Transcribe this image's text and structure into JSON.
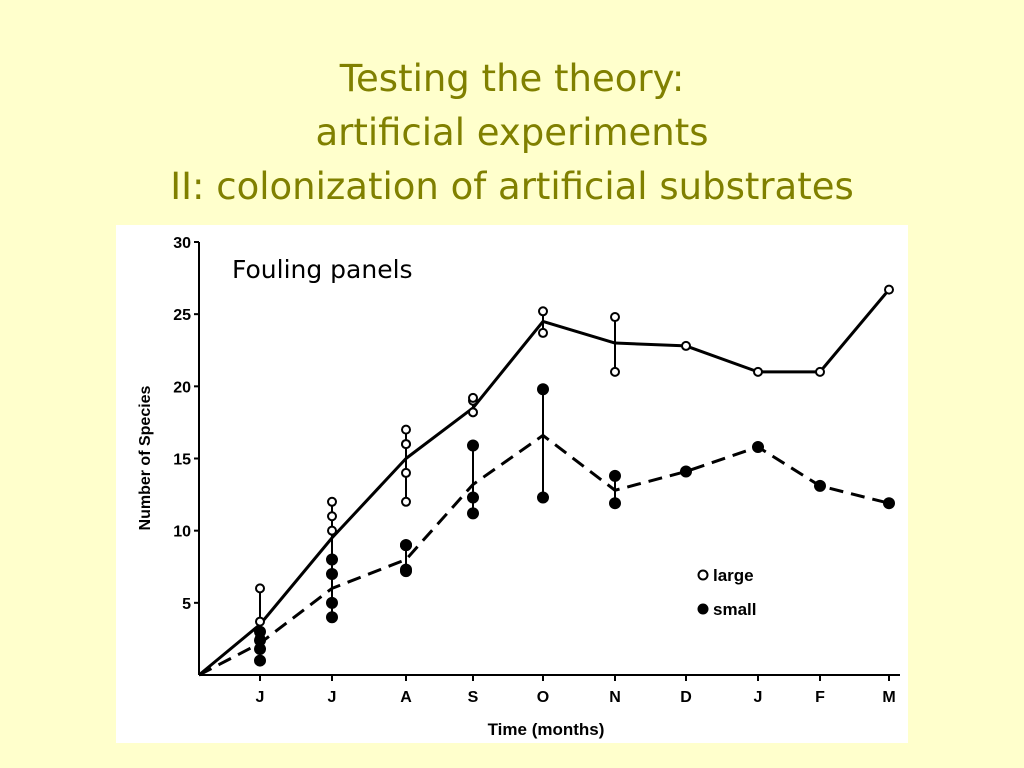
{
  "slide": {
    "title_lines": [
      "Testing the theory:",
      "artificial experiments",
      "II: colonization of artificial substrates"
    ]
  },
  "figure": {
    "inset_label": "Fouling panels"
  },
  "colors": {
    "background": "#ffffcc",
    "title": "#808000",
    "ink": "#000000"
  },
  "chart_data": {
    "type": "line",
    "xlabel": "Time (months)",
    "ylabel": "Number of Species",
    "categories": [
      "J",
      "J",
      "A",
      "S",
      "O",
      "N",
      "D",
      "J",
      "F",
      "M"
    ],
    "ylim": [
      0,
      30
    ],
    "yticks": [
      "5",
      "10",
      "15",
      "20",
      "25",
      "30"
    ],
    "grid": false,
    "legend": {
      "position": "bottom-right",
      "entries": [
        "large",
        "small"
      ]
    },
    "origin_value": 0,
    "series": [
      {
        "name": "large",
        "marker": "open-circle",
        "line": "solid",
        "mean": [
          3.5,
          9.5,
          15,
          18.5,
          24.5,
          23,
          22.8,
          21,
          21,
          26.7
        ],
        "observations": [
          [
            6,
            3.7,
            3,
            2.6
          ],
          [
            12,
            11,
            10,
            8
          ],
          [
            17,
            16,
            16,
            14,
            12
          ],
          [
            19,
            19.2,
            18.2
          ],
          [
            25.2,
            23.7
          ],
          [
            24.8,
            21
          ],
          [
            22.8
          ],
          [
            21
          ],
          [
            21
          ],
          [
            26.7
          ]
        ]
      },
      {
        "name": "small",
        "marker": "filled-circle",
        "line": "dashed",
        "mean": [
          2.2,
          6,
          8,
          13.2,
          16.6,
          12.8,
          14.1,
          15.8,
          13.1,
          11.9
        ],
        "observations": [
          [
            3,
            1.8,
            1,
            2.4
          ],
          [
            8,
            7,
            5,
            4
          ],
          [
            9,
            9,
            7.3,
            7.2
          ],
          [
            15.9,
            12.3,
            11.2
          ],
          [
            19.8,
            12.3
          ],
          [
            13.8,
            11.9
          ],
          [
            14.1
          ],
          [
            15.8
          ],
          [
            13.1
          ],
          [
            11.9
          ]
        ]
      }
    ]
  }
}
